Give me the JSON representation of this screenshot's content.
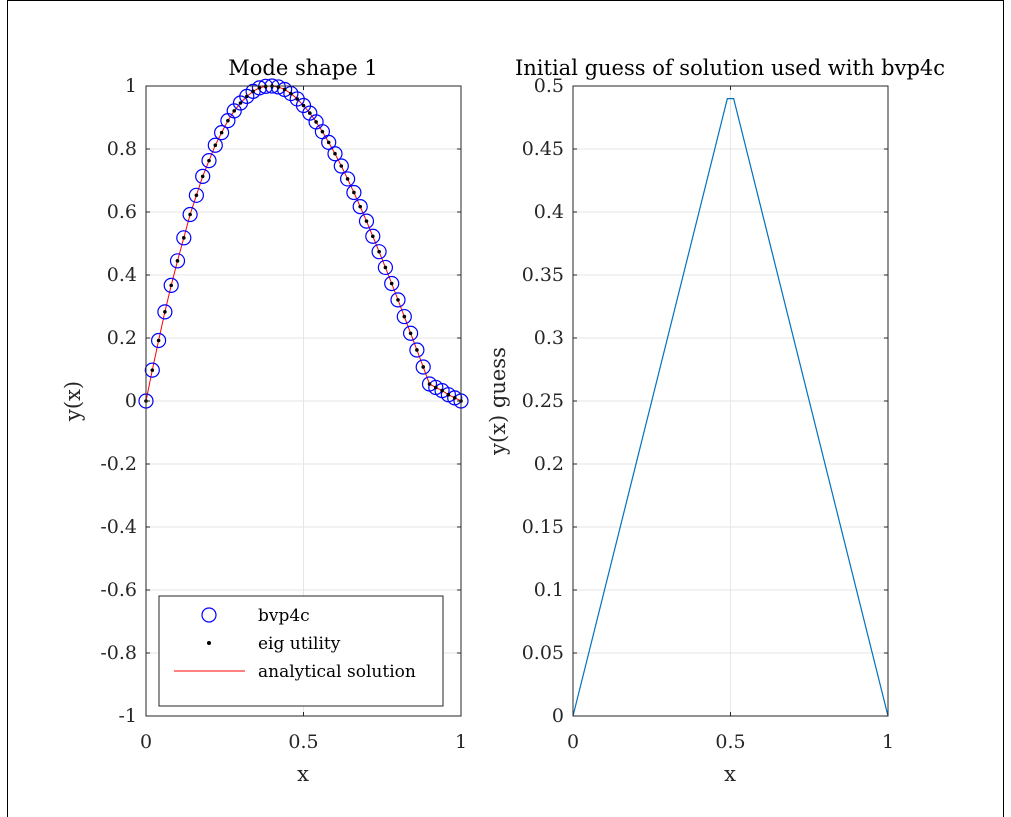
{
  "chart_data": [
    {
      "type": "line",
      "title": "Mode shape 1",
      "xlabel": "x",
      "ylabel": "y(x)",
      "xlim": [
        0,
        1
      ],
      "ylim": [
        -1,
        1
      ],
      "xticks": [
        "0",
        "0.5",
        "1"
      ],
      "yticks": [
        "-1",
        "-0.8",
        "-0.6",
        "-0.4",
        "-0.2",
        "0",
        "0.2",
        "0.4",
        "0.6",
        "0.8",
        "1"
      ],
      "grid": true,
      "legend_position": "bottom-left",
      "x": [
        0,
        0.02,
        0.04,
        0.06,
        0.08,
        0.1,
        0.12,
        0.14,
        0.16,
        0.18,
        0.2,
        0.22,
        0.24,
        0.26,
        0.28,
        0.3,
        0.32,
        0.34,
        0.36,
        0.38,
        0.4,
        0.42,
        0.44,
        0.46,
        0.48,
        0.5,
        0.52,
        0.54,
        0.56,
        0.58,
        0.6,
        0.62,
        0.64,
        0.66,
        0.68,
        0.7,
        0.72,
        0.74,
        0.76,
        0.78,
        0.8,
        0.82,
        0.84,
        0.86,
        0.88,
        0.9,
        0.92,
        0.94,
        0.96,
        0.98,
        1
      ],
      "series": [
        {
          "name": "bvp4c",
          "style": "circles",
          "color": "#0000ff",
          "values": [
            0,
            0.098,
            0.192,
            0.283,
            0.367,
            0.445,
            0.518,
            0.592,
            0.653,
            0.713,
            0.763,
            0.812,
            0.852,
            0.89,
            0.921,
            0.946,
            0.967,
            0.983,
            0.994,
            0.999,
            1.0,
            0.997,
            0.989,
            0.976,
            0.959,
            0.938,
            0.914,
            0.886,
            0.855,
            0.821,
            0.785,
            0.746,
            0.705,
            0.662,
            0.617,
            0.571,
            0.523,
            0.474,
            0.424,
            0.373,
            0.321,
            0.268,
            0.215,
            0.162,
            0.108,
            0.054,
            0.043,
            0.033,
            0.02,
            0.01,
            0
          ]
        },
        {
          "name": "eig utility",
          "style": "dots",
          "color": "#000000",
          "values": [
            0,
            0.098,
            0.192,
            0.283,
            0.367,
            0.445,
            0.518,
            0.592,
            0.653,
            0.713,
            0.763,
            0.812,
            0.852,
            0.89,
            0.921,
            0.946,
            0.967,
            0.983,
            0.994,
            0.999,
            1.0,
            0.997,
            0.989,
            0.976,
            0.959,
            0.938,
            0.914,
            0.886,
            0.855,
            0.821,
            0.785,
            0.746,
            0.705,
            0.662,
            0.617,
            0.571,
            0.523,
            0.474,
            0.424,
            0.373,
            0.321,
            0.268,
            0.215,
            0.162,
            0.108,
            0.054,
            0.043,
            0.033,
            0.02,
            0.01,
            0
          ]
        },
        {
          "name": "analytical solution",
          "style": "line",
          "color": "#ff0000",
          "values": [
            0,
            0.098,
            0.192,
            0.283,
            0.367,
            0.445,
            0.518,
            0.592,
            0.653,
            0.713,
            0.763,
            0.812,
            0.852,
            0.89,
            0.921,
            0.946,
            0.967,
            0.983,
            0.994,
            0.999,
            1.0,
            0.997,
            0.989,
            0.976,
            0.959,
            0.938,
            0.914,
            0.886,
            0.855,
            0.821,
            0.785,
            0.746,
            0.705,
            0.662,
            0.617,
            0.571,
            0.523,
            0.474,
            0.424,
            0.373,
            0.321,
            0.268,
            0.215,
            0.162,
            0.108,
            0.054,
            0.043,
            0.033,
            0.02,
            0.01,
            0
          ]
        }
      ]
    },
    {
      "type": "line",
      "title": "Initial guess of solution used with bvp4c",
      "xlabel": "x",
      "ylabel": "y(x)  guess",
      "xlim": [
        0,
        1
      ],
      "ylim": [
        0,
        0.5
      ],
      "xticks": [
        "0",
        "0.5",
        "1"
      ],
      "yticks": [
        "0",
        "0.05",
        "0.1",
        "0.15",
        "0.2",
        "0.25",
        "0.3",
        "0.35",
        "0.4",
        "0.45",
        "0.5"
      ],
      "grid": true,
      "series": [
        {
          "color": "#0072bd",
          "x": [
            0,
            0.49,
            0.51,
            1
          ],
          "values": [
            0,
            0.49,
            0.49,
            0
          ]
        }
      ]
    }
  ]
}
